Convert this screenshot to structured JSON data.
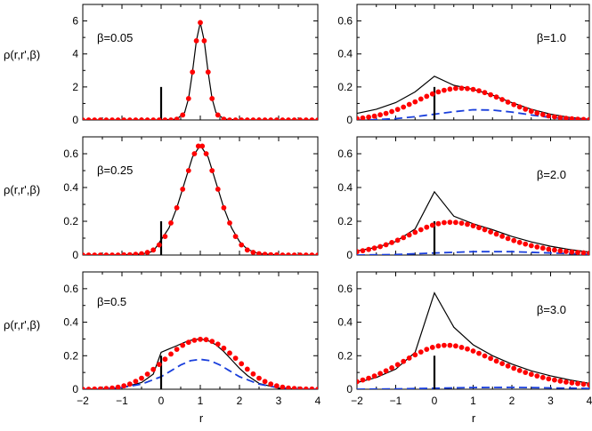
{
  "figure": {
    "xlabel": "r",
    "ylabel": "ρ(r,r',β)"
  },
  "chart_data": [
    {
      "type": "line",
      "label": "β=0.05",
      "xlim": [
        -2,
        4
      ],
      "ylim": [
        0,
        7
      ],
      "xticks": [
        -2,
        -1,
        0,
        1,
        2,
        3,
        4
      ],
      "yticks": [
        0,
        2,
        4,
        6
      ],
      "ytick_labels": [
        "0",
        "2",
        "4",
        "6"
      ],
      "show_xticklabels": false,
      "marker": {
        "x": 0,
        "height": 2
      },
      "series": [
        {
          "style": "solid-black",
          "x": [
            -2,
            -1,
            0,
            0.4,
            0.6,
            0.7,
            0.8,
            0.9,
            1.0,
            1.1,
            1.2,
            1.3,
            1.4,
            1.6,
            2,
            3,
            4
          ],
          "y": [
            0,
            0,
            0,
            0.05,
            0.45,
            1.3,
            2.9,
            4.8,
            5.9,
            4.8,
            2.9,
            1.3,
            0.45,
            0.05,
            0,
            0,
            0
          ]
        },
        {
          "style": "red-dots",
          "x": [
            -2,
            -1.85,
            -1.7,
            -1.55,
            -1.4,
            -1.25,
            -1.1,
            -0.95,
            -0.8,
            -0.65,
            -0.5,
            -0.35,
            -0.2,
            -0.05,
            0.1,
            0.25,
            0.4,
            0.55,
            0.7,
            0.8,
            0.9,
            1.0,
            1.1,
            1.2,
            1.3,
            1.45,
            1.6,
            1.75,
            1.9,
            2.05,
            2.2,
            2.35,
            2.5,
            2.65,
            2.8,
            2.95,
            3.1,
            3.25,
            3.4,
            3.55,
            3.7,
            3.85,
            4.0
          ],
          "y": [
            0,
            0,
            0,
            0,
            0,
            0,
            0,
            0,
            0,
            0,
            0,
            0,
            0,
            0,
            0,
            0,
            0.05,
            0.3,
            1.3,
            2.9,
            4.8,
            5.9,
            4.8,
            2.9,
            1.3,
            0.3,
            0.05,
            0,
            0,
            0,
            0,
            0,
            0,
            0,
            0,
            0,
            0,
            0,
            0,
            0,
            0,
            0,
            0
          ]
        }
      ]
    },
    {
      "type": "line",
      "label": "β=1.0",
      "xlim": [
        -2,
        4
      ],
      "ylim": [
        0,
        0.7
      ],
      "xticks": [
        -2,
        -1,
        0,
        1,
        2,
        3,
        4
      ],
      "yticks": [
        0,
        0.2,
        0.4,
        0.6
      ],
      "ytick_labels": [
        "0",
        "0.2",
        "0.4",
        "0.6"
      ],
      "show_xticklabels": false,
      "marker": {
        "x": 0,
        "height": 0.2
      },
      "series": [
        {
          "style": "solid-black",
          "x": [
            -2,
            -1.5,
            -1,
            -0.5,
            0,
            0.5,
            1,
            1.5,
            2,
            2.5,
            3,
            3.5,
            4
          ],
          "y": [
            0.04,
            0.065,
            0.105,
            0.17,
            0.265,
            0.21,
            0.185,
            0.15,
            0.105,
            0.065,
            0.035,
            0.015,
            0.005
          ]
        },
        {
          "style": "dashed-blue",
          "x": [
            -2,
            -1.5,
            -1,
            -0.5,
            0,
            0.5,
            1,
            1.5,
            2,
            2.5,
            3,
            3.5,
            4
          ],
          "y": [
            0,
            0.002,
            0.008,
            0.02,
            0.035,
            0.05,
            0.062,
            0.06,
            0.048,
            0.03,
            0.015,
            0.006,
            0.002
          ]
        },
        {
          "style": "red-dots",
          "x": [
            -2,
            -1.85,
            -1.7,
            -1.55,
            -1.4,
            -1.25,
            -1.1,
            -0.95,
            -0.8,
            -0.65,
            -0.5,
            -0.35,
            -0.2,
            -0.05,
            0.1,
            0.25,
            0.4,
            0.55,
            0.7,
            0.85,
            1.0,
            1.15,
            1.3,
            1.45,
            1.6,
            1.75,
            1.9,
            2.05,
            2.2,
            2.35,
            2.5,
            2.65,
            2.8,
            2.95,
            3.1,
            3.25,
            3.4,
            3.55,
            3.7,
            3.85,
            4.0
          ],
          "y": [
            0.008,
            0.012,
            0.017,
            0.023,
            0.031,
            0.04,
            0.051,
            0.064,
            0.078,
            0.094,
            0.11,
            0.127,
            0.143,
            0.158,
            0.17,
            0.18,
            0.187,
            0.191,
            0.192,
            0.19,
            0.185,
            0.177,
            0.166,
            0.153,
            0.139,
            0.124,
            0.108,
            0.093,
            0.079,
            0.065,
            0.053,
            0.042,
            0.033,
            0.025,
            0.019,
            0.014,
            0.01,
            0.007,
            0.005,
            0.003,
            0.002
          ]
        }
      ]
    },
    {
      "type": "line",
      "label": "β=0.25",
      "xlim": [
        -2,
        4
      ],
      "ylim": [
        0,
        0.7
      ],
      "xticks": [
        -2,
        -1,
        0,
        1,
        2,
        3,
        4
      ],
      "yticks": [
        0,
        0.2,
        0.4,
        0.6
      ],
      "ytick_labels": [
        "0",
        "0.2",
        "0.4",
        "0.6"
      ],
      "show_xticklabels": false,
      "marker": {
        "x": 0,
        "height": 0.2
      },
      "series": [
        {
          "style": "solid-black",
          "x": [
            -2,
            -1,
            -0.5,
            -0.2,
            0,
            0.2,
            0.4,
            0.6,
            0.8,
            1.0,
            1.2,
            1.4,
            1.6,
            1.8,
            2.0,
            2.2,
            2.5,
            3,
            4
          ],
          "y": [
            0,
            0.001,
            0.006,
            0.022,
            0.09,
            0.16,
            0.28,
            0.43,
            0.58,
            0.65,
            0.58,
            0.43,
            0.28,
            0.16,
            0.08,
            0.034,
            0.008,
            0.001,
            0
          ]
        },
        {
          "style": "red-dots",
          "x": [
            -2,
            -1.85,
            -1.7,
            -1.55,
            -1.4,
            -1.25,
            -1.1,
            -0.95,
            -0.8,
            -0.65,
            -0.5,
            -0.35,
            -0.2,
            -0.05,
            0.1,
            0.25,
            0.4,
            0.55,
            0.7,
            0.85,
            0.95,
            1.05,
            1.15,
            1.3,
            1.45,
            1.6,
            1.75,
            1.9,
            2.05,
            2.2,
            2.35,
            2.5,
            2.65,
            2.8,
            2.95,
            3.1,
            3.25,
            3.4,
            3.55,
            3.7,
            3.85,
            4.0
          ],
          "y": [
            0,
            0,
            0,
            0,
            0,
            0,
            0,
            0.001,
            0.002,
            0.004,
            0.008,
            0.016,
            0.03,
            0.06,
            0.11,
            0.19,
            0.28,
            0.39,
            0.5,
            0.6,
            0.645,
            0.645,
            0.6,
            0.5,
            0.39,
            0.28,
            0.19,
            0.11,
            0.06,
            0.03,
            0.016,
            0.008,
            0.004,
            0.002,
            0.001,
            0,
            0,
            0,
            0,
            0,
            0,
            0
          ]
        }
      ]
    },
    {
      "type": "line",
      "label": "β=2.0",
      "xlim": [
        -2,
        4
      ],
      "ylim": [
        0,
        0.7
      ],
      "xticks": [
        -2,
        -1,
        0,
        1,
        2,
        3,
        4
      ],
      "yticks": [
        0,
        0.2,
        0.4,
        0.6
      ],
      "ytick_labels": [
        "0",
        "0.2",
        "0.4",
        "0.6"
      ],
      "show_xticklabels": false,
      "marker": {
        "x": 0,
        "height": 0.2
      },
      "series": [
        {
          "style": "solid-black",
          "x": [
            -2,
            -1.5,
            -1,
            -0.5,
            0,
            0.5,
            1,
            1.5,
            2,
            2.5,
            3,
            3.5,
            4
          ],
          "y": [
            0.025,
            0.045,
            0.08,
            0.155,
            0.375,
            0.23,
            0.185,
            0.15,
            0.11,
            0.078,
            0.052,
            0.032,
            0.018
          ]
        },
        {
          "style": "dashed-blue",
          "x": [
            -2,
            -1,
            0,
            1,
            2,
            3,
            4
          ],
          "y": [
            0,
            0.003,
            0.012,
            0.02,
            0.02,
            0.012,
            0.005
          ]
        },
        {
          "style": "red-dots",
          "x": [
            -2,
            -1.85,
            -1.7,
            -1.55,
            -1.4,
            -1.25,
            -1.1,
            -0.95,
            -0.8,
            -0.65,
            -0.5,
            -0.35,
            -0.2,
            -0.05,
            0.1,
            0.25,
            0.4,
            0.55,
            0.7,
            0.85,
            1.0,
            1.15,
            1.3,
            1.45,
            1.6,
            1.75,
            1.9,
            2.05,
            2.2,
            2.35,
            2.5,
            2.65,
            2.8,
            2.95,
            3.1,
            3.25,
            3.4,
            3.55,
            3.7,
            3.85,
            4.0
          ],
          "y": [
            0.02,
            0.026,
            0.033,
            0.041,
            0.05,
            0.061,
            0.074,
            0.088,
            0.103,
            0.119,
            0.135,
            0.15,
            0.165,
            0.177,
            0.186,
            0.192,
            0.194,
            0.193,
            0.189,
            0.182,
            0.173,
            0.162,
            0.15,
            0.137,
            0.124,
            0.111,
            0.098,
            0.086,
            0.075,
            0.065,
            0.056,
            0.048,
            0.041,
            0.035,
            0.03,
            0.025,
            0.021,
            0.018,
            0.015,
            0.013,
            0.011
          ]
        }
      ]
    },
    {
      "type": "line",
      "label": "β=0.5",
      "xlim": [
        -2,
        4
      ],
      "ylim": [
        0,
        0.7
      ],
      "xticks": [
        -2,
        -1,
        0,
        1,
        2,
        3,
        4
      ],
      "yticks": [
        0,
        0.2,
        0.4,
        0.6
      ],
      "ytick_labels": [
        "0",
        "0.2",
        "0.4",
        "0.6"
      ],
      "xtick_labels": [
        "−2",
        "−1",
        "0",
        "1",
        "2",
        "3",
        "4"
      ],
      "show_xticklabels": true,
      "marker": {
        "x": 0,
        "height": 0.2
      },
      "series": [
        {
          "style": "solid-black",
          "x": [
            -2,
            -1.5,
            -1,
            -0.5,
            -0.2,
            0,
            0.2,
            0.4,
            0.6,
            0.8,
            1.0,
            1.2,
            1.4,
            1.6,
            1.8,
            2.0,
            2.2,
            2.5,
            3,
            3.5,
            4
          ],
          "y": [
            0,
            0.002,
            0.01,
            0.04,
            0.09,
            0.22,
            0.24,
            0.26,
            0.28,
            0.295,
            0.3,
            0.29,
            0.265,
            0.225,
            0.175,
            0.125,
            0.082,
            0.035,
            0.006,
            0.001,
            0
          ]
        },
        {
          "style": "dashed-blue",
          "x": [
            -2,
            -1.5,
            -1,
            -0.5,
            0,
            0.25,
            0.5,
            0.75,
            1.0,
            1.25,
            1.5,
            1.75,
            2.0,
            2.5,
            3,
            3.5,
            4
          ],
          "y": [
            0,
            0.002,
            0.01,
            0.03,
            0.075,
            0.11,
            0.145,
            0.17,
            0.178,
            0.17,
            0.145,
            0.11,
            0.075,
            0.03,
            0.009,
            0.002,
            0
          ]
        },
        {
          "style": "red-dots",
          "x": [
            -2,
            -1.85,
            -1.7,
            -1.55,
            -1.4,
            -1.25,
            -1.1,
            -0.95,
            -0.8,
            -0.65,
            -0.5,
            -0.35,
            -0.2,
            -0.05,
            0.1,
            0.25,
            0.4,
            0.55,
            0.7,
            0.85,
            1.0,
            1.15,
            1.3,
            1.45,
            1.6,
            1.75,
            1.9,
            2.05,
            2.2,
            2.35,
            2.5,
            2.65,
            2.8,
            2.95,
            3.1,
            3.25,
            3.4,
            3.55,
            3.7,
            3.85,
            4.0
          ],
          "y": [
            0,
            0,
            0.001,
            0.002,
            0.004,
            0.007,
            0.012,
            0.02,
            0.031,
            0.047,
            0.066,
            0.09,
            0.118,
            0.148,
            0.179,
            0.21,
            0.238,
            0.262,
            0.28,
            0.292,
            0.298,
            0.296,
            0.286,
            0.269,
            0.245,
            0.216,
            0.185,
            0.152,
            0.12,
            0.091,
            0.066,
            0.046,
            0.031,
            0.02,
            0.012,
            0.007,
            0.004,
            0.002,
            0.001,
            0.001,
            0
          ]
        }
      ]
    },
    {
      "type": "line",
      "label": "β=3.0",
      "xlim": [
        -2,
        4
      ],
      "ylim": [
        0,
        0.7
      ],
      "xticks": [
        -2,
        -1,
        0,
        1,
        2,
        3,
        4
      ],
      "yticks": [
        0,
        0.2,
        0.4,
        0.6
      ],
      "ytick_labels": [
        "0",
        "0.2",
        "0.4",
        "0.6"
      ],
      "xtick_labels": [
        "−2",
        "−1",
        "0",
        "1",
        "2",
        "3",
        "4"
      ],
      "show_xticklabels": true,
      "marker": {
        "x": 0,
        "height": 0.2
      },
      "series": [
        {
          "style": "solid-black",
          "x": [
            -2,
            -1.5,
            -1,
            -0.5,
            0,
            0.5,
            1,
            1.5,
            2,
            2.5,
            3,
            3.5,
            4
          ],
          "y": [
            0.04,
            0.07,
            0.12,
            0.22,
            0.575,
            0.37,
            0.265,
            0.2,
            0.15,
            0.11,
            0.08,
            0.055,
            0.035
          ]
        },
        {
          "style": "dashed-blue",
          "x": [
            -2,
            -1,
            0,
            1,
            2,
            3,
            4
          ],
          "y": [
            0,
            0.002,
            0.006,
            0.01,
            0.011,
            0.008,
            0.005
          ]
        },
        {
          "style": "red-dots",
          "x": [
            -2,
            -1.85,
            -1.7,
            -1.55,
            -1.4,
            -1.25,
            -1.1,
            -0.95,
            -0.8,
            -0.65,
            -0.5,
            -0.35,
            -0.2,
            -0.05,
            0.1,
            0.25,
            0.4,
            0.55,
            0.7,
            0.85,
            1.0,
            1.15,
            1.3,
            1.45,
            1.6,
            1.75,
            1.9,
            2.05,
            2.2,
            2.35,
            2.5,
            2.65,
            2.8,
            2.95,
            3.1,
            3.25,
            3.4,
            3.55,
            3.7,
            3.85,
            4.0
          ],
          "y": [
            0.045,
            0.055,
            0.066,
            0.079,
            0.094,
            0.11,
            0.128,
            0.147,
            0.166,
            0.186,
            0.205,
            0.222,
            0.238,
            0.25,
            0.258,
            0.262,
            0.262,
            0.258,
            0.25,
            0.24,
            0.228,
            0.214,
            0.199,
            0.184,
            0.168,
            0.153,
            0.139,
            0.125,
            0.112,
            0.1,
            0.089,
            0.079,
            0.07,
            0.062,
            0.055,
            0.049,
            0.043,
            0.038,
            0.034,
            0.03,
            0.027
          ]
        }
      ]
    }
  ]
}
